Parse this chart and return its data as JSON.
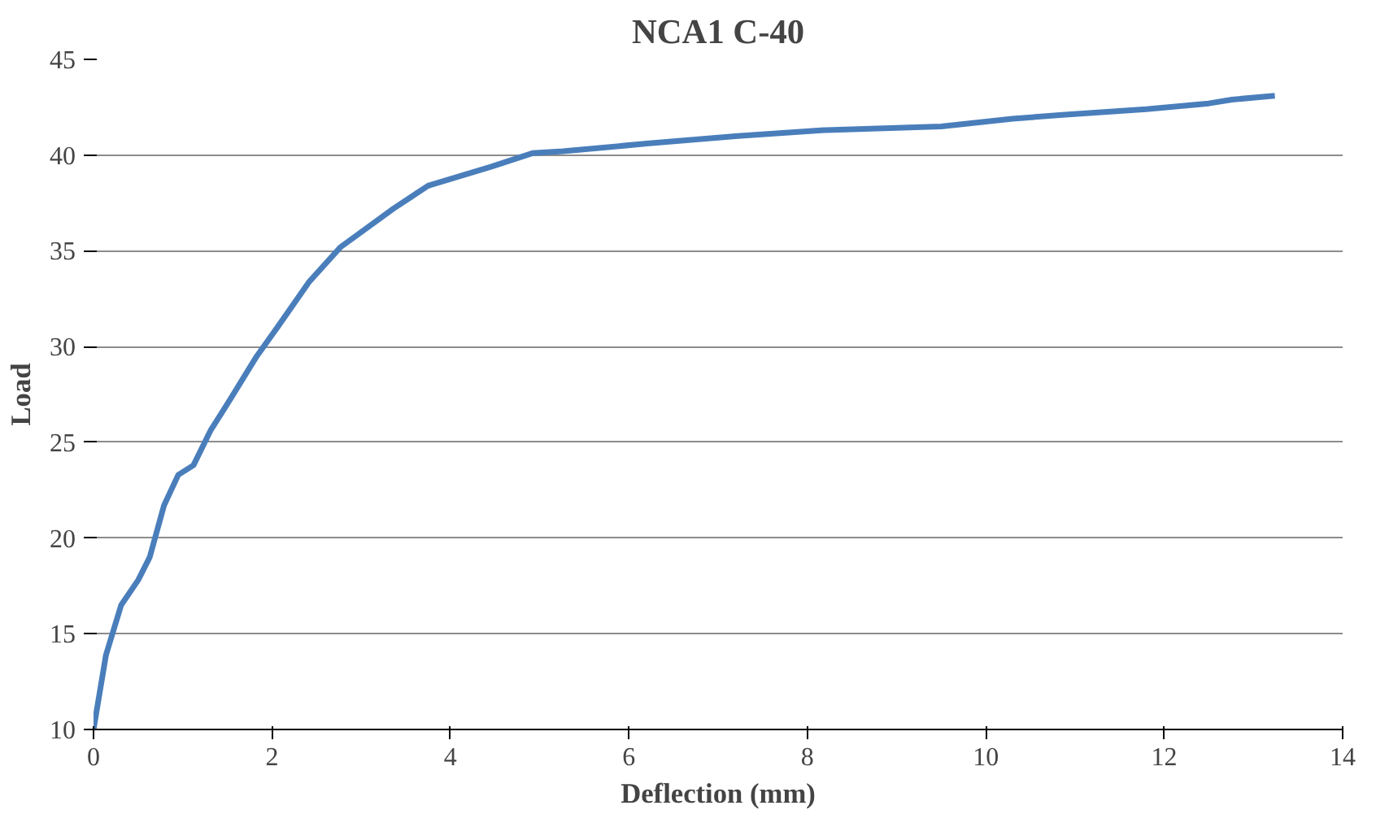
{
  "chart_data": {
    "type": "line",
    "title": "NCA1 C-40",
    "xlabel": "Deflection (mm)",
    "ylabel": "Load",
    "x": [
      0,
      0.14,
      0.31,
      0.5,
      0.63,
      0.79,
      0.95,
      1.12,
      1.31,
      1.54,
      1.83,
      2.06,
      2.42,
      2.77,
      3.36,
      3.75,
      4.46,
      4.92,
      5.26,
      6.2,
      7.22,
      8.19,
      9.5,
      10.3,
      10.86,
      11.8,
      12.5,
      12.76,
      13.24
    ],
    "series": [
      {
        "color": "#4a7ebb",
        "values": [
          10.0,
          13.9,
          16.5,
          17.8,
          19.0,
          21.7,
          23.3,
          23.8,
          25.6,
          27.3,
          29.5,
          31.0,
          33.4,
          35.2,
          37.2,
          38.4,
          39.4,
          40.1,
          40.2,
          40.6,
          41.0,
          41.3,
          41.5,
          41.9,
          42.1,
          42.4,
          42.7,
          42.9,
          43.1
        ]
      }
    ],
    "xlim": [
      0,
      14
    ],
    "xticks": [
      0,
      2,
      4,
      6,
      8,
      10,
      12,
      14
    ],
    "ylim": [
      10,
      45
    ],
    "yticks": [
      10,
      15,
      20,
      25,
      30,
      35,
      40,
      45
    ],
    "grid": "y",
    "marker": "none",
    "line_style": "solid"
  }
}
